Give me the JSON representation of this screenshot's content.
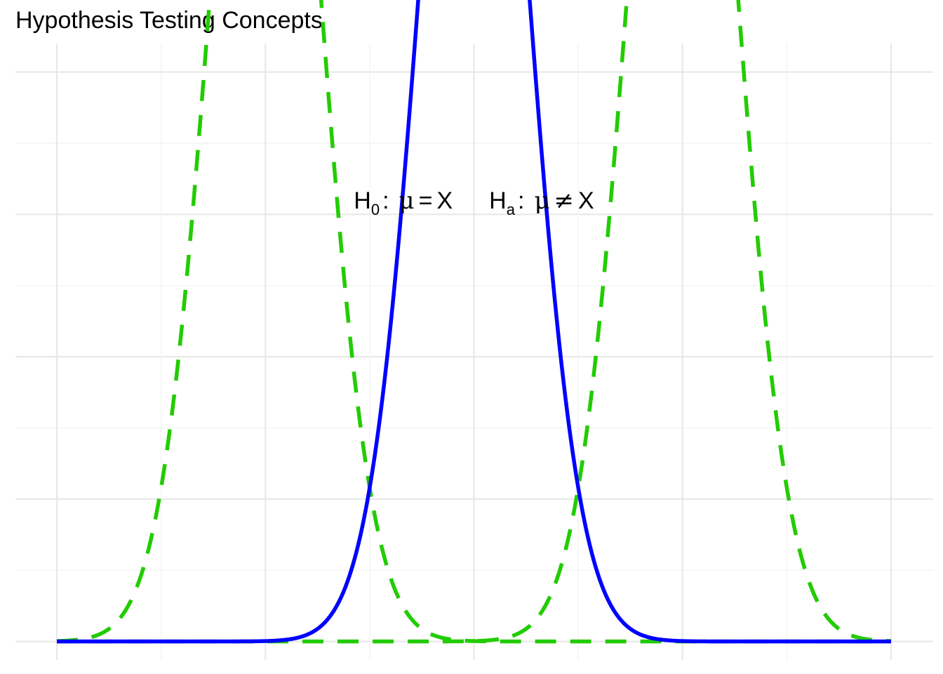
{
  "chart_data": {
    "type": "line",
    "title": "Hypothesis Testing Concepts",
    "xlabel": "",
    "ylabel": "",
    "xlim": [
      -4,
      4
    ],
    "ylim": [
      -0.013,
      0.42
    ],
    "x_gridlines": [
      -4,
      -3,
      -2,
      -1,
      0,
      1,
      2,
      3,
      4
    ],
    "y_gridlines": [
      0,
      0.05,
      0.1,
      0.15,
      0.2,
      0.25,
      0.3,
      0.35,
      0.4
    ],
    "grid": true,
    "legend": "none",
    "series": [
      {
        "mean": 0,
        "sd": 0.5,
        "x_range": [
          -4,
          4
        ],
        "style": "solid",
        "color": "#0000FF"
      },
      {
        "mean": -2,
        "sd": 0.5,
        "x_range": [
          -4,
          4
        ],
        "style": "dashed",
        "color": "#22CC00"
      },
      {
        "mean": 2,
        "sd": 0.5,
        "x_range": [
          -4,
          4
        ],
        "style": "dashed",
        "color": "#22CC00"
      }
    ],
    "annotation": {
      "h0_symbol": "H",
      "h0_subscript": "0",
      "h0_colon": ":",
      "h0_mu": "μ",
      "h0_op": "=",
      "h0_value": "X",
      "ha_symbol": "H",
      "ha_subscript": "a",
      "ha_colon": ":",
      "ha_mu": "μ",
      "ha_op": "≠",
      "ha_value": "X",
      "x": 0,
      "y": 0.31
    },
    "colors": {
      "null_curve": "#0000FF",
      "alternative_curve": "#22CC00",
      "grid_major": "#E8E8E8",
      "grid_minor": "#F2F2F2"
    }
  }
}
